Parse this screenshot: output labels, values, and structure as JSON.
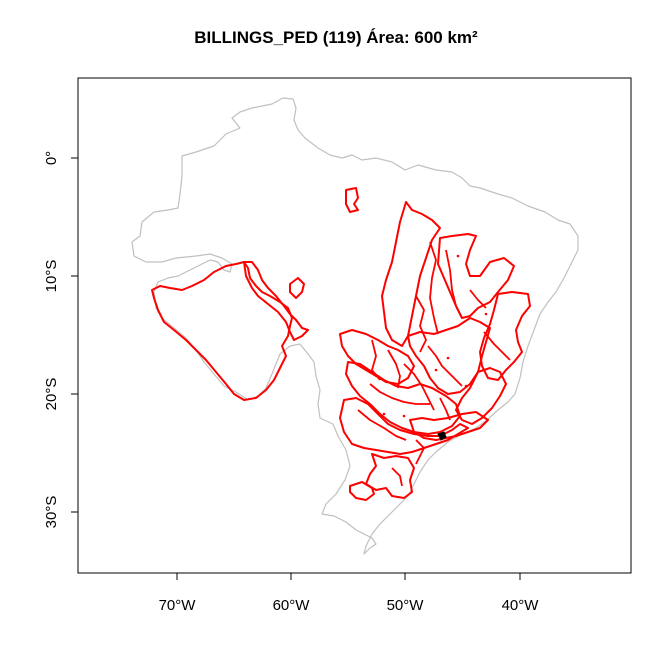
{
  "map": {
    "title": "BILLINGS_PED (119) Área: 600 km²",
    "x_ticks": [
      {
        "lon": -70,
        "label": "70°W"
      },
      {
        "lon": -60,
        "label": "60°W"
      },
      {
        "lon": -50,
        "label": "50°W"
      },
      {
        "lon": -40,
        "label": "40°W"
      }
    ],
    "y_ticks": [
      {
        "lat": 0,
        "label": "0°"
      },
      {
        "lat": -10,
        "label": "10°S"
      },
      {
        "lat": -20,
        "label": "20°S"
      },
      {
        "lat": -30,
        "label": "30°S"
      }
    ],
    "colors": {
      "country_outline": "#c0c0c0",
      "basin_outline": "#ff0000",
      "highlight": "#000000"
    }
  }
}
